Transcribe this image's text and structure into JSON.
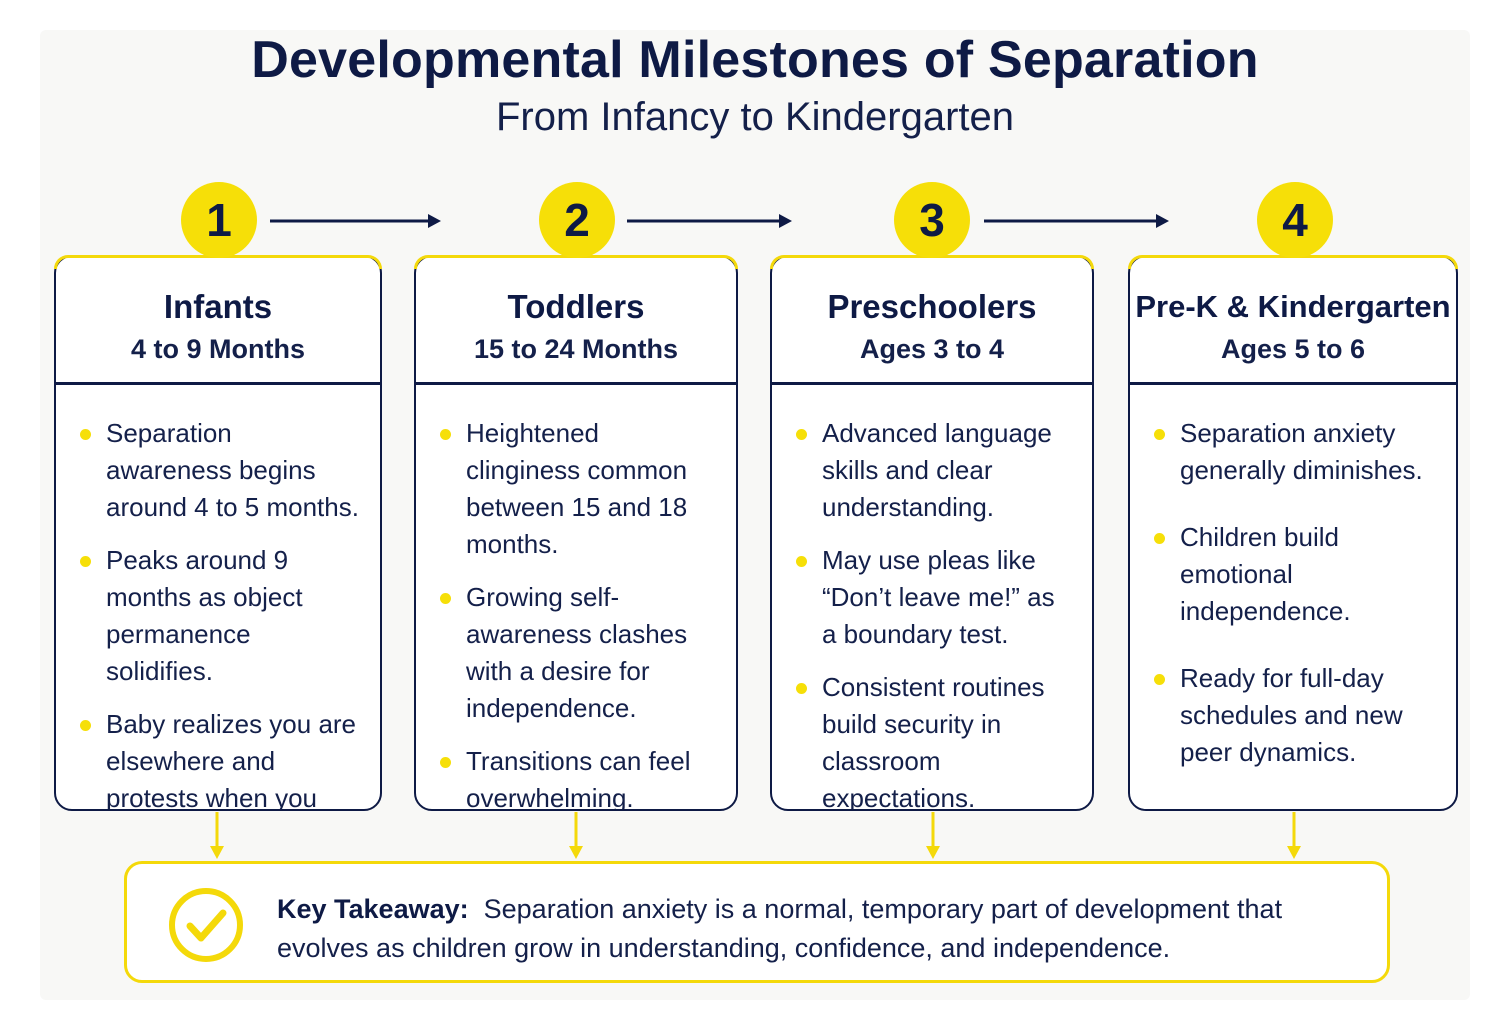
{
  "header": {
    "title": "Developmental Milestones of Separation",
    "subtitle": "From Infancy to Kindergarten"
  },
  "colors": {
    "accent_yellow": "#f6df08",
    "navy": "#0e1a45"
  },
  "stages": [
    {
      "number": "1",
      "name": "Infants",
      "age": "4 to 9 Months",
      "bullets": [
        "Separation awareness begins around 4 to 5 months.",
        "Peaks around 9 months as object permanence solidifies.",
        "Baby realizes you are elsewhere and protests when you leave."
      ]
    },
    {
      "number": "2",
      "name": "Toddlers",
      "age": "15 to 24 Months",
      "bullets": [
        "Heightened clinginess common between 15 and 18 months.",
        "Growing self-awareness clashes with a desire for independence.",
        "Transitions can feel overwhelming."
      ]
    },
    {
      "number": "3",
      "name": "Preschoolers",
      "age": "Ages 3 to 4",
      "bullets": [
        "Advanced language skills and clear understanding.",
        "May use pleas like “Don’t leave me!” as a boundary test.",
        "Consistent routines build security in classroom expectations."
      ]
    },
    {
      "number": "4",
      "name": "Pre-K & Kindergarten",
      "age": "Ages 5 to 6",
      "bullets": [
        "Separation anxiety generally diminishes.",
        "Children build emotional independence.",
        "Ready for full-day schedules and new peer dynamics."
      ]
    }
  ],
  "takeaway": {
    "label": "Key Takeaway:",
    "text": "Separation anxiety is a normal, temporary part of development that evolves as children grow in understanding, confidence, and independence.",
    "icon": "check-circle-icon"
  }
}
